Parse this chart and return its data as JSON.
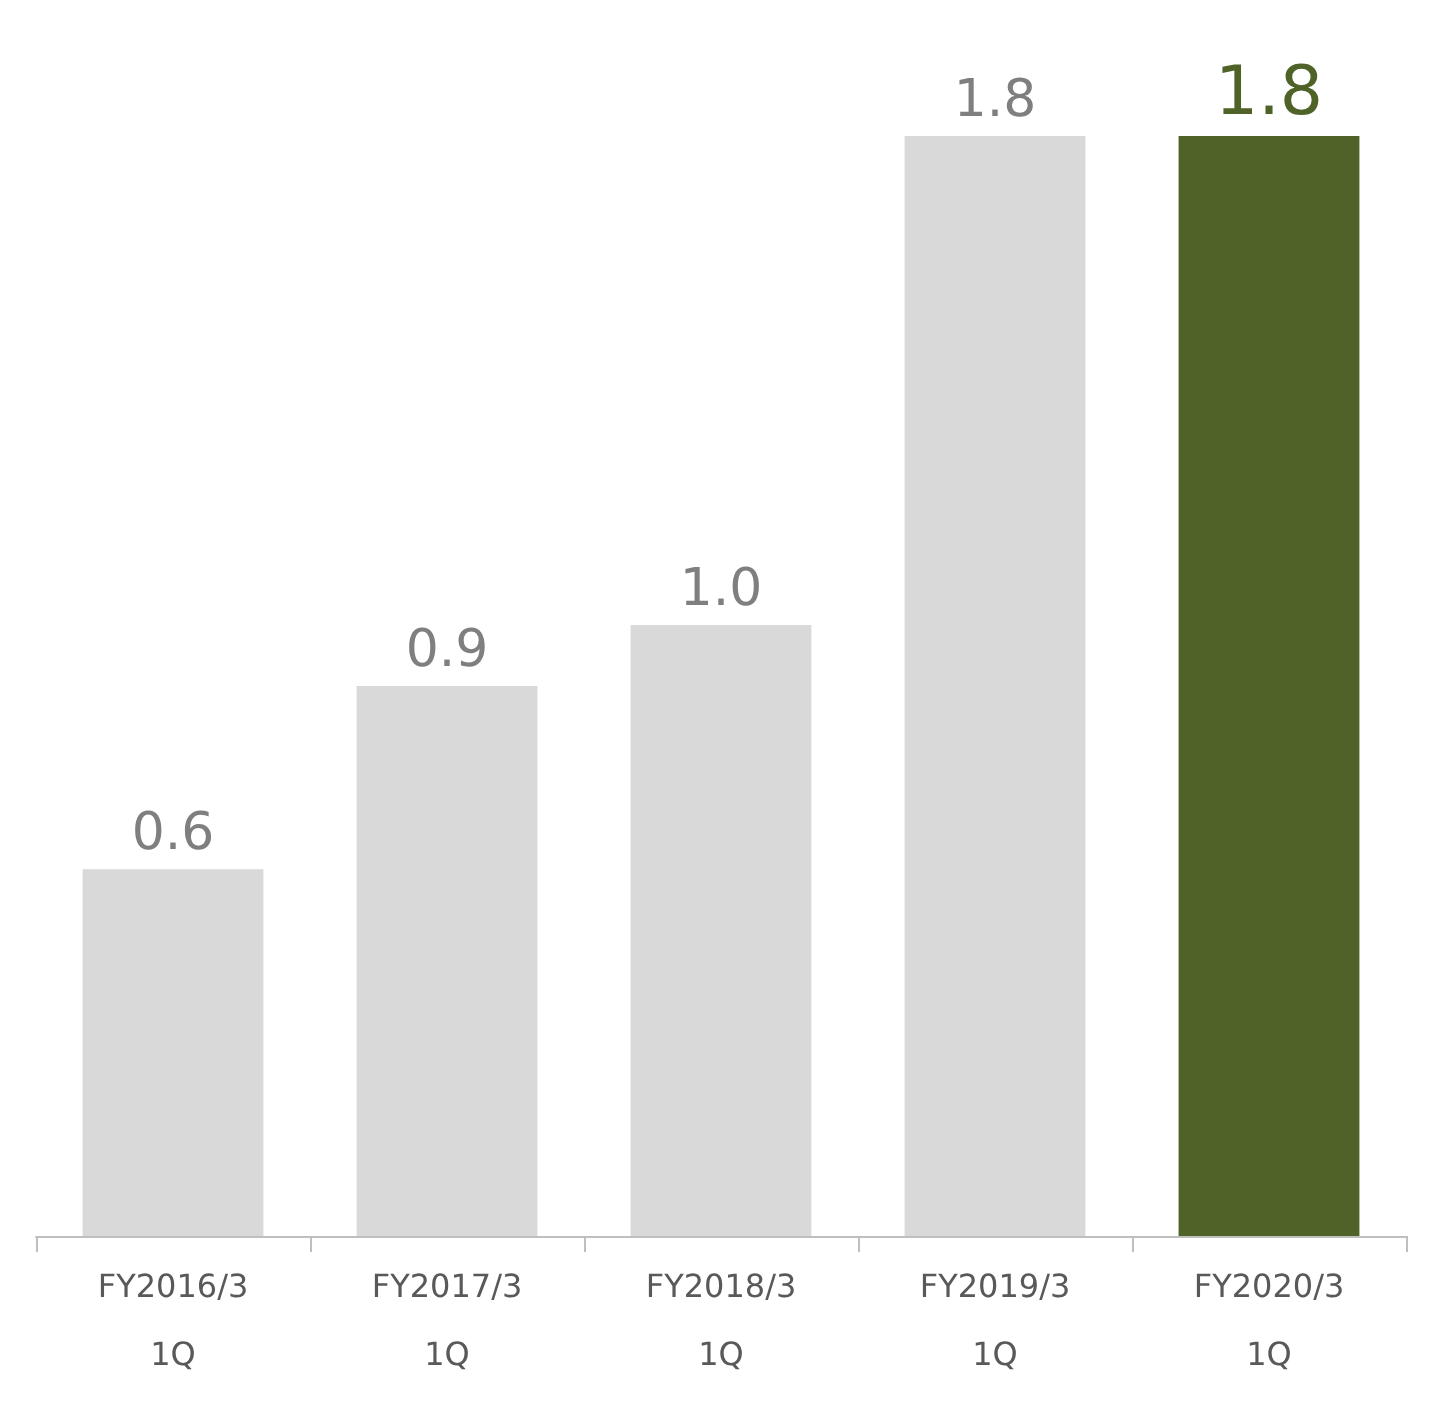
{
  "chart_data": {
    "type": "bar",
    "categories": [
      "FY2016/3\n1Q",
      "FY2017/3\n1Q",
      "FY2018/3\n1Q",
      "FY2019/3\n1Q",
      "FY2020/3\n1Q"
    ],
    "values": [
      0.6,
      0.9,
      1.0,
      1.8,
      1.8
    ],
    "value_labels": [
      "0.6",
      "0.9",
      "1.0",
      "1.8",
      "1.8"
    ],
    "colors": [
      "#d9d9d9",
      "#d9d9d9",
      "#d9d9d9",
      "#d9d9d9",
      "#4f6228"
    ],
    "grid": false
  }
}
